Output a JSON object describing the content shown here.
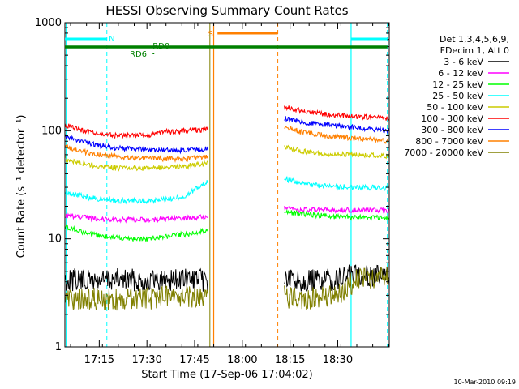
{
  "chart_data": {
    "type": "line",
    "title": "HESSI Observing Summary Count Rates",
    "xlabel": "Start Time (17-Sep-06 17:04:02)",
    "ylabel": "Count Rate (s⁻¹ detector⁻¹)",
    "ylog": true,
    "ylim": [
      1,
      1000
    ],
    "xlim_minutes": [
      17.07,
      18.77
    ],
    "x_tick_labels": [
      "17:15",
      "17:30",
      "17:45",
      "18:00",
      "18:15",
      "18:30"
    ],
    "x_tick_minutes": [
      17.25,
      17.5,
      17.75,
      18.0,
      18.25,
      18.5
    ],
    "y_tick_labels": [
      "1",
      "10",
      "100",
      "1000"
    ],
    "y_tick_values": [
      1,
      10,
      100,
      1000
    ],
    "legend_header": [
      "Det 1,3,4,5,6,9,",
      "FDecim 1, Att 0"
    ],
    "legend_position": "right",
    "data_gap": [
      18.0,
      18.22
    ],
    "series": [
      {
        "name": "3 - 6 keV",
        "color": "#000000",
        "segments": [
          [
            [
              17.07,
              4.2
            ],
            [
              17.2,
              4.1
            ],
            [
              17.35,
              4.2
            ],
            [
              17.5,
              4.1
            ],
            [
              17.65,
              4.2
            ],
            [
              17.82,
              4.1
            ]
          ],
          [
            [
              18.22,
              4.2
            ],
            [
              18.35,
              4.1
            ],
            [
              18.5,
              4.2
            ],
            [
              18.6,
              4.8
            ],
            [
              18.77,
              4.4
            ]
          ]
        ]
      },
      {
        "name": "6 - 12 keV",
        "color": "#ff00ff",
        "segments": [
          [
            [
              17.07,
              16.5
            ],
            [
              17.2,
              15.5
            ],
            [
              17.35,
              15
            ],
            [
              17.5,
              15
            ],
            [
              17.6,
              15.2
            ],
            [
              17.7,
              15.5
            ],
            [
              17.82,
              16
            ]
          ],
          [
            [
              18.22,
              19
            ],
            [
              18.3,
              18.5
            ],
            [
              18.4,
              18.5
            ],
            [
              18.5,
              18.3
            ],
            [
              18.6,
              18.5
            ],
            [
              18.77,
              18.2
            ]
          ]
        ]
      },
      {
        "name": "12 - 25 keV",
        "color": "#00ff00",
        "segments": [
          [
            [
              17.07,
              13
            ],
            [
              17.2,
              11
            ],
            [
              17.35,
              10.2
            ],
            [
              17.5,
              10
            ],
            [
              17.6,
              10.5
            ],
            [
              17.7,
              11
            ],
            [
              17.82,
              12
            ]
          ],
          [
            [
              18.22,
              18
            ],
            [
              18.3,
              17
            ],
            [
              18.4,
              16.5
            ],
            [
              18.5,
              16
            ],
            [
              18.6,
              15.8
            ],
            [
              18.77,
              15.5
            ]
          ]
        ]
      },
      {
        "name": "25 - 50 keV",
        "color": "#00ffff",
        "segments": [
          [
            [
              17.07,
              27
            ],
            [
              17.2,
              24
            ],
            [
              17.35,
              22.5
            ],
            [
              17.5,
              22.5
            ],
            [
              17.6,
              23
            ],
            [
              17.7,
              25
            ],
            [
              17.82,
              34
            ]
          ],
          [
            [
              18.22,
              36
            ],
            [
              18.3,
              33
            ],
            [
              18.4,
              31
            ],
            [
              18.5,
              30.5
            ],
            [
              18.6,
              30
            ],
            [
              18.77,
              29.5
            ]
          ]
        ]
      },
      {
        "name": "50 - 100 keV",
        "color": "#cccc00",
        "segments": [
          [
            [
              17.07,
              55
            ],
            [
              17.2,
              48
            ],
            [
              17.35,
              45
            ],
            [
              17.5,
              45
            ],
            [
              17.6,
              46
            ],
            [
              17.7,
              47
            ],
            [
              17.82,
              50
            ]
          ],
          [
            [
              18.22,
              70
            ],
            [
              18.3,
              65
            ],
            [
              18.4,
              62
            ],
            [
              18.5,
              60
            ],
            [
              18.6,
              60
            ],
            [
              18.77,
              58
            ]
          ]
        ]
      },
      {
        "name": "100 - 300 keV",
        "color": "#ff0000",
        "segments": [
          [
            [
              17.07,
              113
            ],
            [
              17.2,
              96
            ],
            [
              17.35,
              90
            ],
            [
              17.5,
              91
            ],
            [
              17.6,
              98
            ],
            [
              17.7,
              100
            ],
            [
              17.82,
              103
            ]
          ],
          [
            [
              18.22,
              165
            ],
            [
              18.3,
              155
            ],
            [
              18.4,
              145
            ],
            [
              18.5,
              140
            ],
            [
              18.6,
              135
            ],
            [
              18.77,
              130
            ]
          ]
        ]
      },
      {
        "name": "300 - 800 keV",
        "color": "#0000ff",
        "segments": [
          [
            [
              17.07,
              89
            ],
            [
              17.2,
              76
            ],
            [
              17.35,
              69
            ],
            [
              17.5,
              67
            ],
            [
              17.6,
              66
            ],
            [
              17.7,
              66
            ],
            [
              17.82,
              68
            ]
          ],
          [
            [
              18.22,
              130
            ],
            [
              18.3,
              122
            ],
            [
              18.4,
              115
            ],
            [
              18.5,
              110
            ],
            [
              18.6,
              107
            ],
            [
              18.77,
              100
            ]
          ]
        ]
      },
      {
        "name": "800 - 7000 keV",
        "color": "#ff8000",
        "segments": [
          [
            [
              17.07,
              72
            ],
            [
              17.2,
              62
            ],
            [
              17.35,
              57
            ],
            [
              17.5,
              56
            ],
            [
              17.6,
              55
            ],
            [
              17.7,
              55
            ],
            [
              17.82,
              57
            ]
          ],
          [
            [
              18.22,
              110
            ],
            [
              18.3,
              98
            ],
            [
              18.4,
              92
            ],
            [
              18.5,
              88
            ],
            [
              18.6,
              85
            ],
            [
              18.77,
              80
            ]
          ]
        ]
      },
      {
        "name": "7000 - 20000 keV",
        "color": "#808000",
        "segments": [
          [
            [
              17.07,
              2.8
            ],
            [
              17.2,
              2.8
            ],
            [
              17.35,
              2.7
            ],
            [
              17.5,
              2.8
            ],
            [
              17.65,
              3.0
            ],
            [
              17.82,
              2.8
            ]
          ],
          [
            [
              18.22,
              2.9
            ],
            [
              18.35,
              2.8
            ],
            [
              18.5,
              3.0
            ],
            [
              18.6,
              4.2
            ],
            [
              18.77,
              4.4
            ]
          ]
        ]
      }
    ],
    "annotations": [
      {
        "label": "N",
        "color": "#00ffff"
      },
      {
        "label": "S",
        "color": "#ff8000"
      },
      {
        "label": "RD6",
        "color": "#008000"
      },
      {
        "label": "RD0",
        "color": "#008000"
      }
    ],
    "footer_date": "10-Mar-2010 09:19"
  }
}
